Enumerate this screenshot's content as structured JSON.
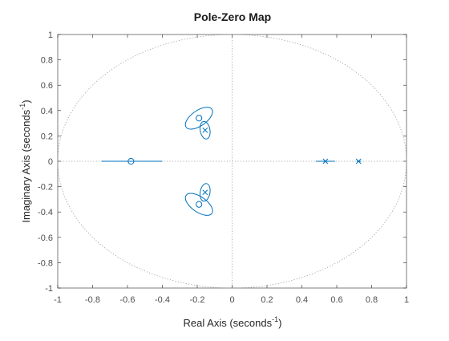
{
  "chart_data": {
    "type": "scatter",
    "title": "Pole-Zero Map",
    "xlabel": {
      "main": "Real Axis (seconds",
      "sup": "-1",
      "close": ")"
    },
    "ylabel": {
      "main": "Imaginary Axis (seconds",
      "sup": "-1",
      "close": ")"
    },
    "xlim": [
      -1,
      1
    ],
    "ylim": [
      -1,
      1
    ],
    "xticks": [
      "-1",
      "-0.8",
      "-0.6",
      "-0.4",
      "-0.2",
      "0",
      "0.2",
      "0.4",
      "0.6",
      "0.8",
      "1"
    ],
    "yticks": [
      "-1",
      "-0.8",
      "-0.6",
      "-0.4",
      "-0.2",
      "0",
      "0.2",
      "0.4",
      "0.6",
      "0.8",
      "1"
    ],
    "grid": "off",
    "unit_circle": true,
    "color": "#0072bd",
    "zeros": [
      {
        "x": -0.58,
        "y": 0.0
      },
      {
        "x": -0.19,
        "y": 0.34
      },
      {
        "x": -0.19,
        "y": -0.34
      }
    ],
    "poles": [
      {
        "x": -0.155,
        "y": 0.245
      },
      {
        "x": -0.155,
        "y": -0.245
      },
      {
        "x": 0.535,
        "y": 0.0
      },
      {
        "x": 0.725,
        "y": 0.0
      }
    ],
    "uncertainty": {
      "intervals": [
        {
          "y": 0.0,
          "x_range": [
            -0.75,
            -0.4
          ]
        },
        {
          "y": 0.0,
          "x_range": [
            0.48,
            0.59
          ]
        },
        {
          "y": 0.0,
          "x_range": [
            0.715,
            0.74
          ]
        }
      ],
      "ellipses": [
        {
          "cx": -0.19,
          "cy": 0.34,
          "rx": 0.09,
          "ry": 0.06,
          "angle_deg": -35
        },
        {
          "cx": -0.155,
          "cy": 0.245,
          "rx": 0.028,
          "ry": 0.07,
          "angle_deg": -10
        },
        {
          "cx": -0.19,
          "cy": -0.34,
          "rx": 0.09,
          "ry": 0.06,
          "angle_deg": 35
        },
        {
          "cx": -0.155,
          "cy": -0.245,
          "rx": 0.028,
          "ry": 0.07,
          "angle_deg": 10
        }
      ]
    }
  }
}
